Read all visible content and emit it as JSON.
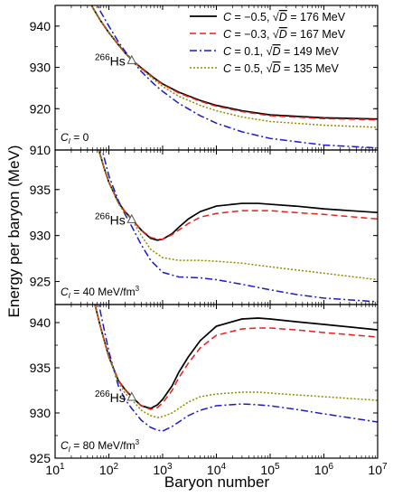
{
  "chart_data": {
    "type": "line",
    "xlabel": "Baryon number",
    "ylabel": "Energy per baryon (MeV)",
    "x_scale": "log",
    "xlim": [
      10,
      10000000
    ],
    "x_ticks": [
      {
        "value": 10,
        "base": "10",
        "exp": "1"
      },
      {
        "value": 100,
        "base": "10",
        "exp": "2"
      },
      {
        "value": 1000,
        "base": "10",
        "exp": "3"
      },
      {
        "value": 10000,
        "base": "10",
        "exp": "4"
      },
      {
        "value": 100000,
        "base": "10",
        "exp": "5"
      },
      {
        "value": 1000000,
        "base": "10",
        "exp": "6"
      },
      {
        "value": 10000000,
        "base": "10",
        "exp": "7"
      }
    ],
    "legend": {
      "placement": "top-right",
      "entries": [
        {
          "c_part": "C = −0.5,",
          "d_part": "= 176 MeV"
        },
        {
          "c_part": "C = −0.3,",
          "d_part": "= 167 MeV"
        },
        {
          "c_part": "C = 0.1,",
          "d_part": "= 149 MeV"
        },
        {
          "c_part": "C = 0.5,",
          "d_part": "= 135 MeV"
        }
      ]
    },
    "series_styles": [
      {
        "color": "#000000",
        "dash": ""
      },
      {
        "color": "#e8201a",
        "dash": "7 4"
      },
      {
        "color": "#1a1acc",
        "dash": "8 3 2 3"
      },
      {
        "color": "#8c8c00",
        "dash": "2 2"
      }
    ],
    "marker": {
      "label_sup": "266",
      "label_main": "Hs",
      "x": 266
    },
    "panels": [
      {
        "label": "C_I = 0",
        "label_main": "= 0",
        "ylim": [
          910,
          945
        ],
        "yticks": [
          910,
          920,
          930,
          940
        ],
        "marker_y": 931.8,
        "series": [
          {
            "name": "C = −0.5, √D = 176 MeV",
            "x": [
              40,
              50,
              70,
              100,
              150,
              200,
              266,
              400,
              700,
              1000,
              2000,
              5000,
              10000,
              30000,
              100000,
              1000000,
              10000000
            ],
            "y": [
              947,
              944.5,
              941.3,
              938.4,
              935.5,
              933.5,
              931.8,
              929.9,
              927.4,
              926.0,
              924.0,
              922.0,
              920.8,
              919.5,
              918.5,
              917.8,
              917.5
            ]
          },
          {
            "name": "C = −0.3, √D = 167 MeV",
            "x": [
              40,
              50,
              70,
              100,
              150,
              200,
              266,
              400,
              700,
              1000,
              2000,
              5000,
              10000,
              30000,
              100000,
              1000000,
              10000000
            ],
            "y": [
              947,
              944.5,
              941.3,
              938.4,
              935.5,
              933.5,
              931.8,
              929.8,
              927.3,
              925.9,
              923.8,
              921.8,
              920.6,
              919.3,
              918.3,
              917.6,
              917.3
            ]
          },
          {
            "name": "C = 0.1, √D = 149 MeV",
            "x": [
              55,
              70,
              100,
              150,
              200,
              266,
              400,
              700,
              1000,
              2000,
              5000,
              10000,
              30000,
              100000,
              1000000,
              10000000
            ],
            "y": [
              947,
              943.5,
              940.0,
              936.2,
              933.9,
              931.8,
              929.0,
              925.9,
              924.2,
              921.3,
              918.3,
              916.5,
              914.4,
              912.8,
              911.2,
              910.5
            ]
          },
          {
            "name": "C = 0.5, √D = 135 MeV",
            "x": [
              40,
              50,
              70,
              100,
              150,
              200,
              266,
              400,
              700,
              1000,
              2000,
              5000,
              10000,
              30000,
              100000,
              1000000,
              10000000
            ],
            "y": [
              947,
              944.5,
              941.3,
              938.4,
              935.4,
              933.4,
              931.8,
              929.6,
              927.0,
              925.4,
              923.0,
              920.8,
              919.5,
              918.0,
              916.9,
              916.0,
              915.5
            ]
          }
        ]
      },
      {
        "label": "C_I = 40 MeV/fm3",
        "label_main": "= 40 MeV/fm",
        "label_sup": "3",
        "ylim": [
          922.5,
          939.3
        ],
        "yticks": [
          925,
          930,
          935
        ],
        "marker_y": 931.8,
        "series": [
          {
            "name": "C = −0.5, √D = 176 MeV",
            "x": [
              60,
              80,
              100,
              150,
              200,
              266,
              400,
              600,
              800,
              1000,
              1500,
              2000,
              3000,
              5000,
              10000,
              30000,
              60000,
              100000,
              300000,
              1000000,
              10000000
            ],
            "y": [
              940,
              937.5,
              935.8,
              933.6,
              932.6,
              931.8,
              930.6,
              929.7,
              929.5,
              929.6,
              930.2,
              930.9,
              931.8,
              932.6,
              933.2,
              933.5,
              933.5,
              933.4,
              933.2,
              932.9,
              932.5
            ]
          },
          {
            "name": "C = −0.3, √D = 167 MeV",
            "x": [
              60,
              80,
              100,
              150,
              200,
              266,
              400,
              600,
              800,
              1000,
              1500,
              2000,
              3000,
              5000,
              10000,
              30000,
              100000,
              300000,
              1000000,
              10000000
            ],
            "y": [
              940,
              937.5,
              935.8,
              933.6,
              932.6,
              931.8,
              930.6,
              929.8,
              929.6,
              929.6,
              930.1,
              930.6,
              931.3,
              932.0,
              932.4,
              932.7,
              932.7,
              932.5,
              932.3,
              931.8
            ]
          },
          {
            "name": "C = 0.1, √D = 149 MeV",
            "x": [
              70,
              100,
              150,
              200,
              266,
              400,
              600,
              1000,
              2000,
              5000,
              10000,
              30000,
              100000,
              300000,
              1000000,
              10000000
            ],
            "y": [
              940,
              936.5,
              933.8,
              932.3,
              931.0,
              929.0,
              927.3,
              926.0,
              925.5,
              925.4,
              925.2,
              924.7,
              924.1,
              923.6,
              923.2,
              922.8
            ]
          },
          {
            "name": "C = 0.5, √D = 135 MeV",
            "x": [
              60,
              80,
              100,
              150,
              200,
              266,
              400,
              600,
              1000,
              2000,
              5000,
              10000,
              30000,
              100000,
              1000000,
              10000000
            ],
            "y": [
              940,
              937.5,
              935.8,
              933.5,
              932.4,
              931.8,
              930.0,
              928.5,
              927.6,
              927.3,
              927.3,
              927.2,
              927.0,
              926.6,
              925.9,
              925.2
            ]
          }
        ]
      },
      {
        "label": "C_I = 80 MeV/fm3",
        "label_main": "= 80 MeV/fm",
        "label_sup": "3",
        "ylim": [
          925,
          942
        ],
        "yticks": [
          925,
          930,
          935,
          940
        ],
        "marker_y": 931.8,
        "series": [
          {
            "name": "C = −0.5, √D = 176 MeV",
            "x": [
              50,
              70,
              100,
              150,
              200,
              266,
              400,
              600,
              800,
              1000,
              1500,
              2000,
              3000,
              5000,
              10000,
              30000,
              60000,
              100000,
              300000,
              1000000,
              10000000
            ],
            "y": [
              943,
              939.5,
              936.2,
              933.6,
              932.6,
              931.8,
              930.8,
              930.5,
              930.9,
              931.5,
              933.0,
              934.5,
              936.2,
              938.0,
              939.6,
              940.4,
              940.5,
              940.4,
              940.1,
              939.8,
              939.2
            ]
          },
          {
            "name": "C = −0.3, √D = 167 MeV",
            "x": [
              50,
              70,
              100,
              150,
              200,
              266,
              400,
              600,
              800,
              1000,
              1500,
              2000,
              3000,
              5000,
              10000,
              30000,
              60000,
              100000,
              300000,
              1000000,
              10000000
            ],
            "y": [
              943,
              939.5,
              936.2,
              933.6,
              932.6,
              931.8,
              930.8,
              930.4,
              930.6,
              931.1,
              932.5,
              933.9,
              935.5,
              937.2,
              938.6,
              939.3,
              939.4,
              939.4,
              939.2,
              938.9,
              938.4
            ]
          },
          {
            "name": "C = 0.1, √D = 149 MeV",
            "x": [
              60,
              80,
              100,
              150,
              200,
              266,
              400,
              600,
              800,
              1000,
              1500,
              2000,
              3000,
              5000,
              10000,
              30000,
              60000,
              100000,
              300000,
              1000000,
              10000000
            ],
            "y": [
              943,
              939.5,
              936.8,
              933.0,
              931.5,
              930.5,
              929.2,
              928.4,
              928.1,
              928.0,
              928.5,
              929.0,
              929.7,
              930.3,
              930.8,
              931.0,
              930.9,
              930.8,
              930.4,
              929.9,
              929.0
            ]
          },
          {
            "name": "C = 0.5, √D = 135 MeV",
            "x": [
              50,
              70,
              100,
              150,
              200,
              266,
              400,
              600,
              800,
              1000,
              1500,
              2000,
              3000,
              5000,
              10000,
              30000,
              60000,
              100000,
              300000,
              1000000,
              10000000
            ],
            "y": [
              943,
              939.5,
              936.2,
              933.4,
              932.2,
              931.5,
              930.3,
              929.7,
              929.5,
              929.6,
              930.0,
              930.5,
              931.2,
              931.8,
              932.1,
              932.3,
              932.3,
              932.2,
              932.0,
              931.8,
              931.4
            ]
          }
        ]
      }
    ]
  }
}
